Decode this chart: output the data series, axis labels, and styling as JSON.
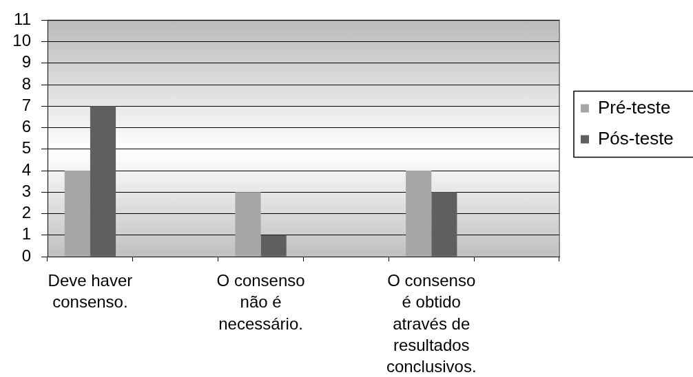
{
  "chart_data": {
    "type": "bar",
    "categories": [
      "Deve haver consenso.",
      null,
      "O consenso não é necessário.",
      null,
      "O consenso é obtido através de resultados conclusivos.",
      null
    ],
    "series": [
      {
        "name": "Pré-teste",
        "color": "#a6a6a6",
        "values": [
          4,
          null,
          3,
          null,
          4,
          null
        ]
      },
      {
        "name": "Pós-teste",
        "color": "#5f5f5f",
        "values": [
          7,
          null,
          1,
          null,
          3,
          null
        ]
      }
    ],
    "ylim": [
      0,
      11
    ],
    "yticks": [
      0,
      1,
      2,
      3,
      4,
      5,
      6,
      7,
      8,
      9,
      10,
      11
    ],
    "grid": "y",
    "legend": "right"
  }
}
